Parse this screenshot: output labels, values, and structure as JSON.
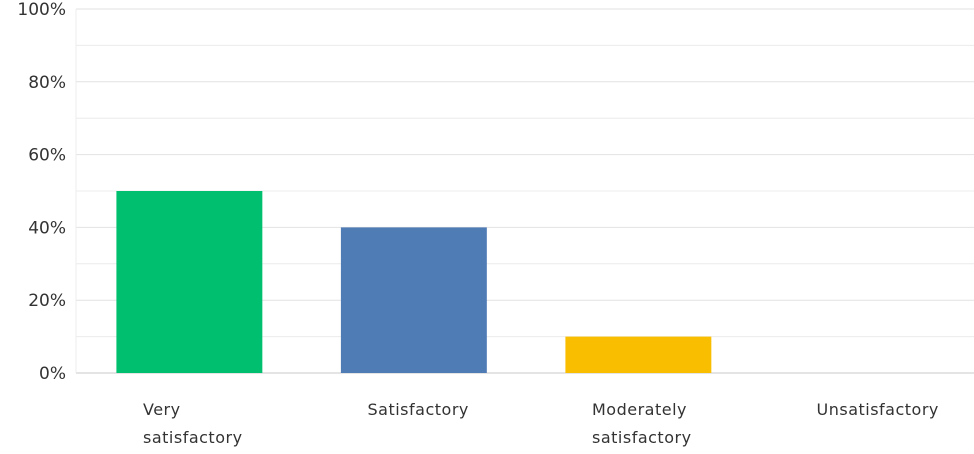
{
  "chart_data": {
    "type": "bar",
    "categories": [
      "Very satisfactory",
      "Satisfactory",
      "Moderately satisfactory",
      "Unsatisfactory"
    ],
    "values": [
      50,
      40,
      10,
      0
    ],
    "colors": [
      "#00bf6f",
      "#507cb6",
      "#f9be00",
      "#6bc8cd"
    ],
    "ylim": [
      0,
      100
    ],
    "yticks": [
      {
        "value": 0,
        "label": "0%"
      },
      {
        "value": 20,
        "label": "20%"
      },
      {
        "value": 40,
        "label": "40%"
      },
      {
        "value": 60,
        "label": "60%"
      },
      {
        "value": 80,
        "label": "80%"
      },
      {
        "value": 100,
        "label": "100%"
      }
    ],
    "minor_yticks": [
      10,
      30,
      50,
      70,
      90
    ],
    "grid": true
  }
}
